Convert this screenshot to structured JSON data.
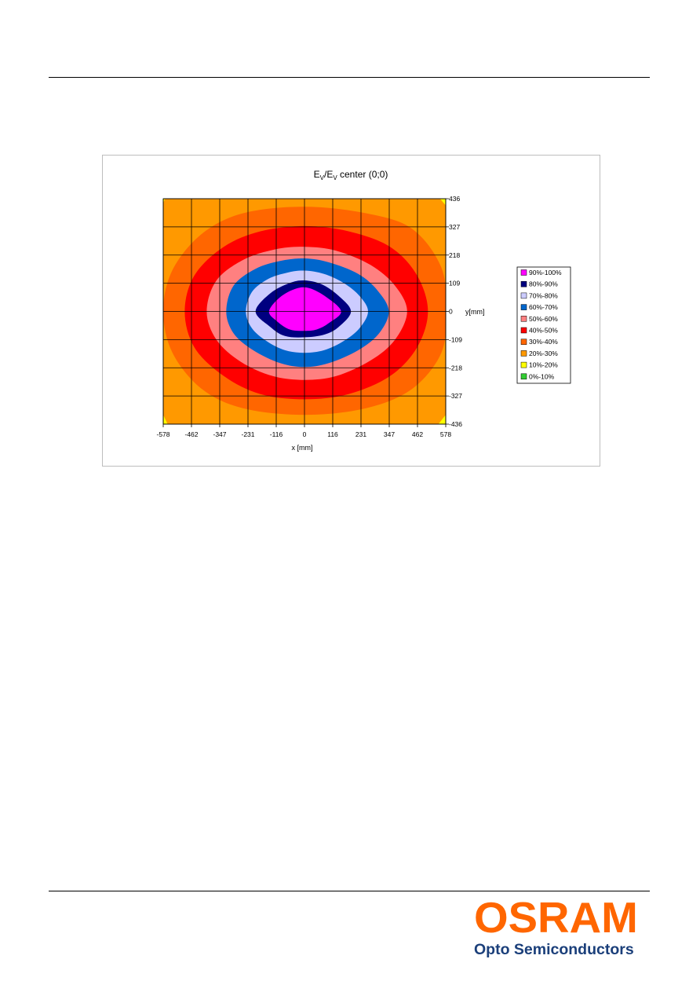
{
  "chart_data": {
    "type": "heatmap",
    "title_main": "E",
    "title_sub1": "V",
    "title_mid": "/E",
    "title_sub2": "V",
    "title_tail": " center (0;0)",
    "xlabel": "x [mm]",
    "ylabel": "y[mm]",
    "x_ticks": [
      "-578",
      "-462",
      "-347",
      "-231",
      "-116",
      "0",
      "116",
      "231",
      "347",
      "462",
      "578"
    ],
    "y_ticks": [
      "436",
      "327",
      "218",
      "109",
      "0",
      "-109",
      "-218",
      "-327",
      "-436"
    ],
    "xlim": [
      -578,
      578
    ],
    "ylim": [
      -436,
      436
    ],
    "grid": true,
    "legend_placement": "right",
    "levels": [
      {
        "label": "90%-100%",
        "color": "#ff00ff"
      },
      {
        "label": "80%-90%",
        "color": "#000080"
      },
      {
        "label": "70%-80%",
        "color": "#ccccff"
      },
      {
        "label": "60%-70%",
        "color": "#0066cc"
      },
      {
        "label": "50%-60%",
        "color": "#ff8080"
      },
      {
        "label": "40%-50%",
        "color": "#ff0000"
      },
      {
        "label": "30%-40%",
        "color": "#ff6600"
      },
      {
        "label": "20%-30%",
        "color": "#ff9900"
      },
      {
        "label": "10%-20%",
        "color": "#ffff00"
      },
      {
        "label": "0%-10%",
        "color": "#33cc33"
      }
    ],
    "contours": [
      {
        "level": "20%-30%",
        "points": [
          [
            -578,
            436
          ],
          [
            578,
            436
          ],
          [
            578,
            -436
          ],
          [
            -578,
            -436
          ]
        ]
      },
      {
        "level": "30%-40%",
        "points": [
          [
            -578,
            0
          ],
          [
            -540,
            160
          ],
          [
            -420,
            300
          ],
          [
            -250,
            380
          ],
          [
            0,
            405
          ],
          [
            250,
            380
          ],
          [
            440,
            320
          ],
          [
            560,
            170
          ],
          [
            578,
            0
          ],
          [
            560,
            -160
          ],
          [
            440,
            -300
          ],
          [
            250,
            -375
          ],
          [
            0,
            -400
          ],
          [
            -250,
            -375
          ],
          [
            -420,
            -300
          ],
          [
            -540,
            -160
          ]
        ]
      },
      {
        "level": "40%-50%",
        "points": [
          [
            -490,
            0
          ],
          [
            -450,
            140
          ],
          [
            -330,
            250
          ],
          [
            -180,
            310
          ],
          [
            0,
            330
          ],
          [
            180,
            310
          ],
          [
            350,
            250
          ],
          [
            460,
            140
          ],
          [
            505,
            0
          ],
          [
            460,
            -140
          ],
          [
            350,
            -250
          ],
          [
            180,
            -320
          ],
          [
            0,
            -340
          ],
          [
            -180,
            -320
          ],
          [
            -330,
            -250
          ],
          [
            -450,
            -140
          ]
        ]
      },
      {
        "level": "50%-60%",
        "points": [
          [
            -400,
            0
          ],
          [
            -360,
            120
          ],
          [
            -250,
            200
          ],
          [
            -120,
            240
          ],
          [
            0,
            250
          ],
          [
            130,
            235
          ],
          [
            270,
            180
          ],
          [
            370,
            100
          ],
          [
            420,
            0
          ],
          [
            370,
            -110
          ],
          [
            270,
            -190
          ],
          [
            130,
            -250
          ],
          [
            0,
            -265
          ],
          [
            -130,
            -250
          ],
          [
            -260,
            -195
          ],
          [
            -360,
            -110
          ]
        ]
      },
      {
        "level": "60%-70%",
        "points": [
          [
            -320,
            0
          ],
          [
            -290,
            100
          ],
          [
            -200,
            165
          ],
          [
            -100,
            195
          ],
          [
            0,
            205
          ],
          [
            100,
            190
          ],
          [
            220,
            145
          ],
          [
            300,
            80
          ],
          [
            345,
            0
          ],
          [
            305,
            -85
          ],
          [
            220,
            -150
          ],
          [
            100,
            -200
          ],
          [
            0,
            -215
          ],
          [
            -100,
            -200
          ],
          [
            -210,
            -150
          ],
          [
            -290,
            -85
          ]
        ]
      },
      {
        "level": "70%-80%",
        "points": [
          [
            -240,
            0
          ],
          [
            -215,
            75
          ],
          [
            -150,
            125
          ],
          [
            -70,
            150
          ],
          [
            0,
            158
          ],
          [
            80,
            145
          ],
          [
            160,
            110
          ],
          [
            225,
            60
          ],
          [
            260,
            0
          ],
          [
            225,
            -65
          ],
          [
            160,
            -115
          ],
          [
            80,
            -150
          ],
          [
            0,
            -160
          ],
          [
            -80,
            -150
          ],
          [
            -155,
            -115
          ],
          [
            -215,
            -65
          ]
        ]
      },
      {
        "level": "80%-90%",
        "points": [
          [
            -200,
            0
          ],
          [
            -140,
            70
          ],
          [
            -60,
            110
          ],
          [
            0,
            120
          ],
          [
            70,
            105
          ],
          [
            140,
            60
          ],
          [
            190,
            0
          ],
          [
            140,
            -60
          ],
          [
            80,
            -90
          ],
          [
            0,
            -100
          ],
          [
            -80,
            -95
          ],
          [
            -140,
            -60
          ]
        ]
      },
      {
        "level": "90%-100%",
        "points": [
          [
            -145,
            0
          ],
          [
            -100,
            55
          ],
          [
            -35,
            88
          ],
          [
            20,
            90
          ],
          [
            90,
            55
          ],
          [
            150,
            0
          ],
          [
            100,
            -45
          ],
          [
            50,
            -70
          ],
          [
            0,
            -75
          ],
          [
            -60,
            -70
          ],
          [
            -110,
            -40
          ]
        ]
      }
    ],
    "corner_fills": [
      {
        "level": "10%-20%",
        "points": [
          [
            -578,
            436
          ],
          [
            -570,
            436
          ],
          [
            -578,
            420
          ]
        ]
      },
      {
        "level": "10%-20%",
        "points": [
          [
            578,
            436
          ],
          [
            555,
            436
          ],
          [
            578,
            410
          ]
        ]
      },
      {
        "level": "10%-20%",
        "points": [
          [
            -578,
            -436
          ],
          [
            -560,
            -436
          ],
          [
            -578,
            -400
          ]
        ]
      },
      {
        "level": "10%-20%",
        "points": [
          [
            578,
            -436
          ],
          [
            548,
            -436
          ],
          [
            578,
            -400
          ]
        ]
      }
    ]
  },
  "logo": {
    "wordmark": "OSRAM",
    "tagline": "Opto Semiconductors",
    "brand_color": "#ff6600",
    "tagline_color": "#1b3f7a"
  }
}
